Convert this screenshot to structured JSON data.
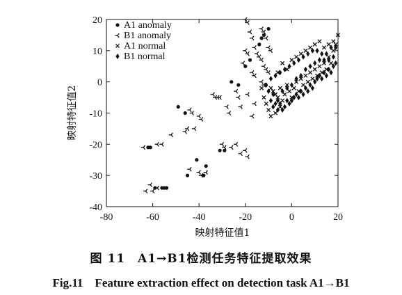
{
  "caption": {
    "cn": "图 11　A1→B1检测任务特征提取效果",
    "en": "Fig.11　Feature extraction effect on detection task A1→B1"
  },
  "chart_data": {
    "type": "scatter",
    "title": "",
    "xlabel": "映射特征值1",
    "ylabel": "映射特征值2",
    "xlim": [
      -80,
      20
    ],
    "ylim": [
      -40,
      20
    ],
    "xticks": [
      -80,
      -60,
      -40,
      -20,
      0,
      20
    ],
    "yticks": [
      -40,
      -30,
      -20,
      -10,
      0,
      10,
      20
    ],
    "grid": false,
    "legend_position": "top-left",
    "series": [
      {
        "name": "A1 anomaly",
        "marker": "circle",
        "points": [
          [
            -10,
            17
          ],
          [
            -12,
            15
          ],
          [
            -13,
            14
          ],
          [
            -14,
            12
          ],
          [
            -20,
            5
          ],
          [
            -18,
            7
          ],
          [
            -26,
            0
          ],
          [
            -23,
            -1
          ],
          [
            -49,
            -8
          ],
          [
            -46,
            -10
          ],
          [
            -62,
            -21
          ],
          [
            -61,
            -21
          ],
          [
            -31,
            -22
          ],
          [
            -29,
            -22
          ],
          [
            -41,
            -25
          ],
          [
            -37,
            -27
          ],
          [
            -45,
            -30
          ],
          [
            -38,
            -30
          ],
          [
            -59,
            -34
          ],
          [
            -56,
            -34
          ],
          [
            -55,
            -34
          ],
          [
            -54,
            -34
          ]
        ]
      },
      {
        "name": "B1 anomaly",
        "marker": "tri-left",
        "points": [
          [
            -20,
            20
          ],
          [
            -19,
            19
          ],
          [
            -18,
            16
          ],
          [
            -17,
            14
          ],
          [
            -13,
            17
          ],
          [
            -12,
            16
          ],
          [
            -11,
            14
          ],
          [
            -10,
            11
          ],
          [
            -9,
            10
          ],
          [
            -16,
            11
          ],
          [
            -15,
            9
          ],
          [
            -14,
            8
          ],
          [
            -13,
            7
          ],
          [
            -20,
            10
          ],
          [
            -19,
            9
          ],
          [
            -21,
            6
          ],
          [
            -12,
            5
          ],
          [
            -11,
            4
          ],
          [
            -10,
            3
          ],
          [
            -17,
            3
          ],
          [
            -16,
            2
          ],
          [
            -13,
            0
          ],
          [
            -12,
            -1
          ],
          [
            -24,
            -3
          ],
          [
            -23,
            -5
          ],
          [
            -22,
            -8
          ],
          [
            -19,
            -4
          ],
          [
            -17,
            -11
          ],
          [
            -16,
            -7
          ],
          [
            -34,
            -4
          ],
          [
            -33,
            -5
          ],
          [
            -32,
            -5
          ],
          [
            -31,
            -5
          ],
          [
            -28,
            -8
          ],
          [
            -27,
            -10
          ],
          [
            -44,
            -9
          ],
          [
            -43,
            -10
          ],
          [
            -40,
            -11
          ],
          [
            -39,
            -12
          ],
          [
            -42,
            -15
          ],
          [
            -45,
            -15
          ],
          [
            -46,
            -16
          ],
          [
            -52,
            -17
          ],
          [
            -58,
            -20
          ],
          [
            -56,
            -20
          ],
          [
            -64,
            -21
          ],
          [
            -30,
            -20
          ],
          [
            -29,
            -21
          ],
          [
            -26,
            -21
          ],
          [
            -24,
            -20
          ],
          [
            -22,
            -23
          ],
          [
            -20,
            -22
          ],
          [
            -19,
            -24
          ],
          [
            -44,
            -28
          ],
          [
            -40,
            -29
          ],
          [
            -39,
            -30
          ],
          [
            -37,
            -29
          ],
          [
            -61,
            -33
          ],
          [
            -63,
            -35
          ],
          [
            -60,
            -35
          ],
          [
            -58,
            -34
          ]
        ]
      },
      {
        "name": "A1 normal",
        "marker": "x",
        "points": [
          [
            -9,
            -2
          ],
          [
            -8,
            -3
          ],
          [
            -7,
            -4
          ],
          [
            -6,
            -5
          ],
          [
            -5,
            -2
          ],
          [
            -4,
            -6
          ],
          [
            -3,
            -4
          ],
          [
            -2,
            -1
          ],
          [
            -1,
            -3
          ],
          [
            0,
            -5
          ],
          [
            1,
            -2
          ],
          [
            2,
            0
          ],
          [
            3,
            -3
          ],
          [
            4,
            1
          ],
          [
            5,
            -1
          ],
          [
            6,
            2
          ],
          [
            7,
            0
          ],
          [
            8,
            3
          ],
          [
            9,
            1
          ],
          [
            10,
            4
          ],
          [
            11,
            2
          ],
          [
            12,
            5
          ],
          [
            13,
            3
          ],
          [
            14,
            6
          ],
          [
            15,
            4
          ],
          [
            16,
            8
          ],
          [
            17,
            6
          ],
          [
            18,
            10
          ],
          [
            19,
            12
          ],
          [
            20,
            15
          ],
          [
            -12,
            -5
          ],
          [
            -11,
            -7
          ],
          [
            -10,
            -9
          ],
          [
            -9,
            -11
          ],
          [
            -6,
            3
          ],
          [
            -4,
            6
          ],
          [
            -2,
            4
          ],
          [
            0,
            7
          ],
          [
            2,
            8
          ],
          [
            4,
            9
          ],
          [
            6,
            10
          ],
          [
            8,
            11
          ],
          [
            10,
            12
          ],
          [
            12,
            13
          ],
          [
            14,
            11
          ],
          [
            16,
            12
          ],
          [
            18,
            13
          ],
          [
            -13,
            -2
          ],
          [
            -7,
            -10
          ],
          [
            -5,
            -8
          ]
        ]
      },
      {
        "name": "B1 normal",
        "marker": "diamond",
        "points": [
          [
            -10,
            -3
          ],
          [
            -9,
            -6
          ],
          [
            -8,
            -8
          ],
          [
            -7,
            -7
          ],
          [
            -6,
            -9
          ],
          [
            -5,
            -7
          ],
          [
            -4,
            -9
          ],
          [
            -3,
            -8
          ],
          [
            -2,
            -6
          ],
          [
            -1,
            -7
          ],
          [
            0,
            -6
          ],
          [
            1,
            -5
          ],
          [
            2,
            -4
          ],
          [
            3,
            -5
          ],
          [
            4,
            -3
          ],
          [
            5,
            -4
          ],
          [
            6,
            -2
          ],
          [
            7,
            -3
          ],
          [
            8,
            -1
          ],
          [
            9,
            -2
          ],
          [
            10,
            0
          ],
          [
            11,
            1
          ],
          [
            12,
            2
          ],
          [
            13,
            1
          ],
          [
            14,
            3
          ],
          [
            15,
            2
          ],
          [
            16,
            4
          ],
          [
            17,
            3
          ],
          [
            18,
            5
          ],
          [
            19,
            6
          ],
          [
            -11,
            -1
          ],
          [
            -9,
            1
          ],
          [
            -7,
            2
          ],
          [
            -5,
            3
          ],
          [
            -3,
            4
          ],
          [
            -1,
            5
          ],
          [
            1,
            6
          ],
          [
            3,
            7
          ],
          [
            5,
            8
          ],
          [
            7,
            9
          ],
          [
            9,
            10
          ],
          [
            11,
            10
          ],
          [
            13,
            9
          ],
          [
            15,
            9
          ],
          [
            17,
            11
          ],
          [
            19,
            11
          ],
          [
            -8,
            -4
          ],
          [
            -6,
            -6
          ],
          [
            -4,
            -3
          ],
          [
            -2,
            -2
          ],
          [
            0,
            -1
          ],
          [
            2,
            1
          ],
          [
            4,
            2
          ],
          [
            6,
            4
          ],
          [
            8,
            5
          ],
          [
            10,
            6
          ],
          [
            12,
            7
          ],
          [
            14,
            7
          ],
          [
            16,
            7
          ],
          [
            18,
            8
          ]
        ]
      }
    ]
  }
}
